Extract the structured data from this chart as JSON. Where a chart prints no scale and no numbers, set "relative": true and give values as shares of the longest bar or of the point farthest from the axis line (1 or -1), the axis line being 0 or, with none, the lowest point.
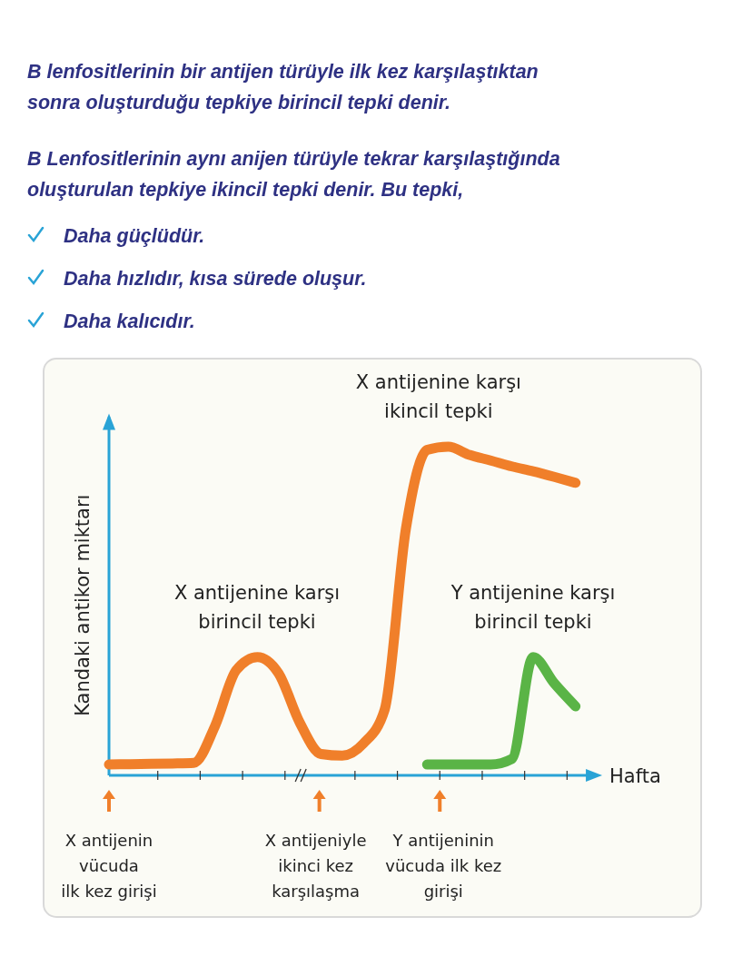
{
  "chart_data": {
    "type": "line",
    "relative": true,
    "title": "B lenfositlerinin bir antijen türüyle ilk kez karşılaştıktan sonra oluşturduğu tepkiye birincil tepki denir.",
    "subtitle": "B Lenfositlerinin aynı anijen türüyle tekrar karşılaştığında oluşturulan tepkiye ikincil tepki denir. Bu tepki,",
    "xlabel": "Hafta",
    "ylabel": "Kandaki antikor miktarı",
    "categories": [
      null,
      null,
      null,
      null,
      null,
      null,
      null,
      null,
      null,
      null,
      null,
      null,
      null,
      null,
      null,
      null,
      null,
      null,
      null,
      null,
      null,
      null,
      null
    ],
    "series": [
      {
        "color": "#f07f2a",
        "values": [
          0.033,
          0.034,
          0.035,
          0.036,
          0.038,
          0.15,
          0.32,
          0.36,
          0.31,
          0.16,
          0.065,
          0.06,
          0.097,
          0.2,
          0.75,
          0.99,
          1,
          0.975,
          0.958,
          0.94,
          0.925,
          0.908,
          0.89
        ]
      },
      {
        "color": "#5ab446",
        "values": [
          null,
          null,
          null,
          null,
          null,
          null,
          null,
          null,
          null,
          null,
          null,
          null,
          null,
          null,
          null,
          0.033,
          0.033,
          0.033,
          0.033,
          0.05,
          0.36,
          0.28,
          0.21
        ]
      }
    ],
    "annotations": [
      "Daha güçlüdür.",
      "Daha hızlıdır, kısa sürede oluşur.",
      "Daha kalıcıdır.",
      "X antijenine karşı\nbirincil tepki",
      "X antijenine karşı\nikincil tepki",
      "Y antijenine karşı\nbirincil tepki",
      "X antijenin\nvücuda\nilk kez girişi",
      "X antijeniyle\nikinci kez\nkarşılaşma",
      "Y antijeninin\nvücuda ilk kez\ngirişi"
    ]
  }
}
